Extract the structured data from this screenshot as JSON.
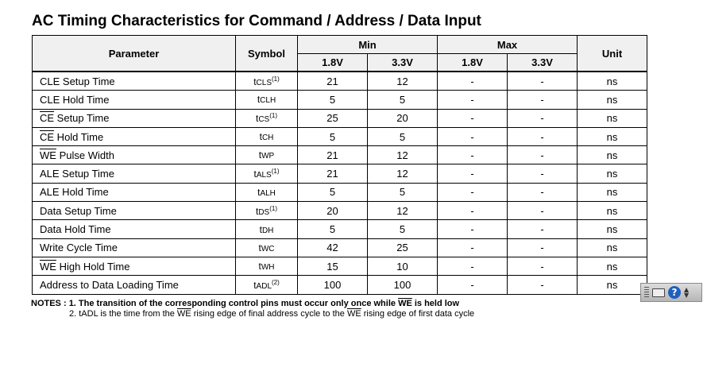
{
  "title": "AC Timing Characteristics for Command / Address / Data Input",
  "header": {
    "parameter": "Parameter",
    "symbol": "Symbol",
    "min": "Min",
    "max": "Max",
    "unit": "Unit",
    "min_1_8": "1.8V",
    "min_3_3": "3.3V",
    "max_1_8": "1.8V",
    "max_3_3": "3.3V"
  },
  "rows": [
    {
      "param": "CLE Setup Time",
      "param_bar": "",
      "sym_t": "t",
      "sym_sub": "CLS",
      "sym_note": "(1)",
      "min18": "21",
      "min33": "12",
      "max18": "-",
      "max33": "-",
      "unit": "ns"
    },
    {
      "param": "CLE Hold Time",
      "param_bar": "",
      "sym_t": "t",
      "sym_sub": "CLH",
      "sym_note": "",
      "min18": "5",
      "min33": "5",
      "max18": "-",
      "max33": "-",
      "unit": "ns"
    },
    {
      "param": " Setup Time",
      "param_bar": "CE",
      "sym_t": "t",
      "sym_sub": "CS",
      "sym_note": "(1)",
      "min18": "25",
      "min33": "20",
      "max18": "-",
      "max33": "-",
      "unit": "ns"
    },
    {
      "param": " Hold Time",
      "param_bar": "CE",
      "sym_t": "t",
      "sym_sub": "CH",
      "sym_note": "",
      "min18": "5",
      "min33": "5",
      "max18": "-",
      "max33": "-",
      "unit": "ns"
    },
    {
      "param": " Pulse Width",
      "param_bar": "WE",
      "sym_t": "t",
      "sym_sub": "WP",
      "sym_note": "",
      "min18": "21",
      "min33": "12",
      "max18": "-",
      "max33": "-",
      "unit": "ns"
    },
    {
      "param": "ALE Setup Time",
      "param_bar": "",
      "sym_t": "t",
      "sym_sub": "ALS",
      "sym_note": "(1)",
      "min18": "21",
      "min33": "12",
      "max18": "-",
      "max33": "-",
      "unit": "ns"
    },
    {
      "param": "ALE Hold Time",
      "param_bar": "",
      "sym_t": "t",
      "sym_sub": "ALH",
      "sym_note": "",
      "min18": "5",
      "min33": "5",
      "max18": "-",
      "max33": "-",
      "unit": "ns"
    },
    {
      "param": "Data Setup Time",
      "param_bar": "",
      "sym_t": "t",
      "sym_sub": "DS",
      "sym_note": "(1)",
      "min18": "20",
      "min33": "12",
      "max18": "-",
      "max33": "-",
      "unit": "ns"
    },
    {
      "param": "Data Hold Time",
      "param_bar": "",
      "sym_t": "t",
      "sym_sub": "DH",
      "sym_note": "",
      "min18": "5",
      "min33": "5",
      "max18": "-",
      "max33": "-",
      "unit": "ns"
    },
    {
      "param": "Write Cycle Time",
      "param_bar": "",
      "sym_t": "t",
      "sym_sub": "WC",
      "sym_note": "",
      "min18": "42",
      "min33": "25",
      "max18": "-",
      "max33": "-",
      "unit": "ns"
    },
    {
      "param": " High Hold Time",
      "param_bar": "WE",
      "sym_t": "t",
      "sym_sub": "WH",
      "sym_note": "",
      "min18": "15",
      "min33": "10",
      "max18": "-",
      "max33": "-",
      "unit": "ns"
    },
    {
      "param": "Address to Data Loading Time",
      "param_bar": "",
      "sym_t": "t",
      "sym_sub": "ADL",
      "sym_note": "(2)",
      "min18": "100",
      "min33": "100",
      "max18": "-",
      "max33": "-",
      "unit": "ns"
    }
  ],
  "notes": {
    "label": "NOTES :",
    "n1_a": "1. The transition of the corresponding control pins must occur only once while ",
    "n1_bar": "WE",
    "n1_b": " is held low",
    "n2_a": "2. tADL is the time from the ",
    "n2_bar1": "WE",
    "n2_b": " rising edge of final address cycle to the ",
    "n2_bar2": "WE",
    "n2_c": " rising edge of first data cycle"
  },
  "toolbar": {
    "icons": [
      "grip-icon",
      "keyboard-icon",
      "help-icon",
      "chevron-icon"
    ],
    "help_glyph": "?"
  }
}
